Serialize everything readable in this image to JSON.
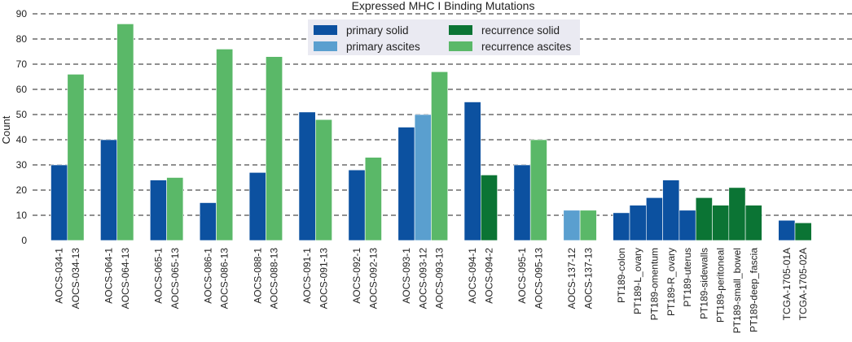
{
  "chart_data": {
    "type": "bar",
    "title": "Expressed MHC I Binding Mutations",
    "xlabel": "",
    "ylabel": "Count",
    "ylim": [
      0,
      90
    ],
    "yticks": [
      0,
      10,
      20,
      30,
      40,
      50,
      60,
      70,
      80,
      90
    ],
    "grid": "horizontal-dashed",
    "legend_position": "top-center",
    "legend": [
      {
        "name": "primary solid",
        "color": "#0c51a0"
      },
      {
        "name": "primary ascites",
        "color": "#5a9fcf"
      },
      {
        "name": "recurrence solid",
        "color": "#0b7434"
      },
      {
        "name": "recurrence ascites",
        "color": "#5ab868"
      }
    ],
    "groups": [
      {
        "bars": [
          {
            "label": "AOCS-034-1",
            "value": 30,
            "series": "primary solid"
          },
          {
            "label": "AOCS-034-13",
            "value": 66,
            "series": "recurrence ascites"
          }
        ]
      },
      {
        "bars": [
          {
            "label": "AOCS-064-1",
            "value": 40,
            "series": "primary solid"
          },
          {
            "label": "AOCS-064-13",
            "value": 86,
            "series": "recurrence ascites"
          }
        ]
      },
      {
        "bars": [
          {
            "label": "AOCS-065-1",
            "value": 24,
            "series": "primary solid"
          },
          {
            "label": "AOCS-065-13",
            "value": 25,
            "series": "recurrence ascites"
          }
        ]
      },
      {
        "bars": [
          {
            "label": "AOCS-086-1",
            "value": 15,
            "series": "primary solid"
          },
          {
            "label": "AOCS-086-13",
            "value": 76,
            "series": "recurrence ascites"
          }
        ]
      },
      {
        "bars": [
          {
            "label": "AOCS-088-1",
            "value": 27,
            "series": "primary solid"
          },
          {
            "label": "AOCS-088-13",
            "value": 73,
            "series": "recurrence ascites"
          }
        ]
      },
      {
        "bars": [
          {
            "label": "AOCS-091-1",
            "value": 51,
            "series": "primary solid"
          },
          {
            "label": "AOCS-091-13",
            "value": 48,
            "series": "recurrence ascites"
          }
        ]
      },
      {
        "bars": [
          {
            "label": "AOCS-092-1",
            "value": 28,
            "series": "primary solid"
          },
          {
            "label": "AOCS-092-13",
            "value": 33,
            "series": "recurrence ascites"
          }
        ]
      },
      {
        "bars": [
          {
            "label": "AOCS-093-1",
            "value": 45,
            "series": "primary solid"
          },
          {
            "label": "AOCS-093-12",
            "value": 50,
            "series": "primary ascites"
          },
          {
            "label": "AOCS-093-13",
            "value": 67,
            "series": "recurrence ascites"
          }
        ]
      },
      {
        "bars": [
          {
            "label": "AOCS-094-1",
            "value": 55,
            "series": "primary solid"
          },
          {
            "label": "AOCS-094-2",
            "value": 26,
            "series": "recurrence solid"
          }
        ]
      },
      {
        "bars": [
          {
            "label": "AOCS-095-1",
            "value": 30,
            "series": "primary solid"
          },
          {
            "label": "AOCS-095-13",
            "value": 40,
            "series": "recurrence ascites"
          }
        ]
      },
      {
        "bars": [
          {
            "label": "AOCS-137-12",
            "value": 12,
            "series": "primary ascites"
          },
          {
            "label": "AOCS-137-13",
            "value": 12,
            "series": "recurrence ascites"
          }
        ]
      },
      {
        "bars": [
          {
            "label": "PT189-colon",
            "value": 11,
            "series": "primary solid"
          },
          {
            "label": "PT189-L_ovary",
            "value": 14,
            "series": "primary solid"
          },
          {
            "label": "PT189-omentum",
            "value": 17,
            "series": "primary solid"
          },
          {
            "label": "PT189-R_ovary",
            "value": 24,
            "series": "primary solid"
          },
          {
            "label": "PT189-uterus",
            "value": 12,
            "series": "primary solid"
          },
          {
            "label": "PT189-sidewalls",
            "value": 17,
            "series": "recurrence solid"
          },
          {
            "label": "PT189-peritoneal",
            "value": 14,
            "series": "recurrence solid"
          },
          {
            "label": "PT189-small_bowel",
            "value": 21,
            "series": "recurrence solid"
          },
          {
            "label": "PT189-deep_fascia",
            "value": 14,
            "series": "recurrence solid"
          }
        ]
      },
      {
        "bars": [
          {
            "label": "TCGA-1705-01A",
            "value": 8,
            "series": "primary solid"
          },
          {
            "label": "TCGA-1705-02A",
            "value": 7,
            "series": "recurrence solid"
          }
        ]
      }
    ]
  }
}
